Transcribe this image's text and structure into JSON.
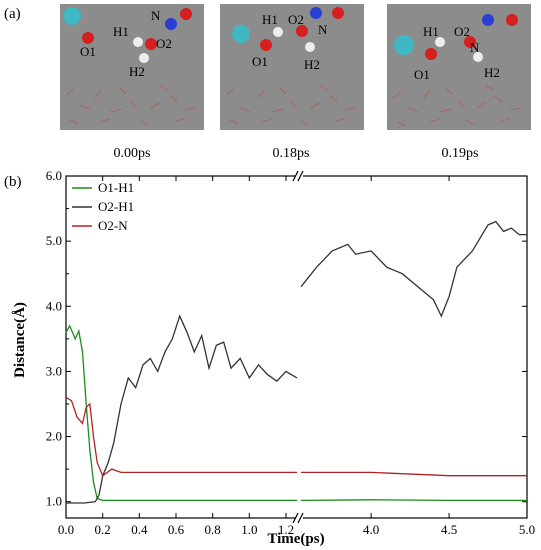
{
  "panel_a": {
    "label": "(a)",
    "snapshots": [
      {
        "time": "0.00ps",
        "atoms": [
          "N",
          "H1",
          "O2",
          "O1",
          "H2"
        ]
      },
      {
        "time": "0.18ps",
        "atoms": [
          "H1",
          "O2",
          "N",
          "O1",
          "H2"
        ]
      },
      {
        "time": "0.19ps",
        "atoms": [
          "H1",
          "O2",
          "N",
          "O1",
          "H2"
        ]
      }
    ]
  },
  "panel_b": {
    "label": "(b)"
  },
  "chart_data": {
    "type": "line",
    "title": "",
    "xlabel": "Time(ps)",
    "ylabel": "Distance(Å)",
    "ylim": [
      0.75,
      6.0
    ],
    "broken_x_axis": true,
    "segments": [
      {
        "xlim": [
          0.0,
          1.26
        ],
        "ticks": [
          "0.0",
          "0.2",
          "0.4",
          "0.6",
          "0.8",
          "1.0",
          "1.2"
        ]
      },
      {
        "xlim": [
          3.55,
          5.0
        ],
        "ticks": [
          "4.0",
          "4.5",
          "5.0"
        ]
      }
    ],
    "yticks": [
      "1.0",
      "2.0",
      "3.0",
      "4.0",
      "5.0",
      "6.0"
    ],
    "legend_position": "top-left",
    "series": [
      {
        "name": "O1-H1",
        "color": "#1a8c1a",
        "points": [
          [
            0.0,
            3.6
          ],
          [
            0.02,
            3.7
          ],
          [
            0.05,
            3.5
          ],
          [
            0.07,
            3.62
          ],
          [
            0.09,
            3.3
          ],
          [
            0.11,
            2.5
          ],
          [
            0.13,
            1.8
          ],
          [
            0.15,
            1.3
          ],
          [
            0.17,
            1.05
          ],
          [
            0.2,
            1.02
          ],
          [
            0.3,
            1.02
          ],
          [
            0.5,
            1.02
          ],
          [
            0.8,
            1.02
          ],
          [
            1.0,
            1.02
          ],
          [
            1.26,
            1.02
          ],
          [
            3.55,
            1.02
          ],
          [
            4.0,
            1.03
          ],
          [
            4.5,
            1.02
          ],
          [
            5.0,
            1.02
          ]
        ]
      },
      {
        "name": "O2-H1",
        "color": "#333333",
        "points": [
          [
            0.0,
            0.98
          ],
          [
            0.1,
            0.98
          ],
          [
            0.16,
            1.0
          ],
          [
            0.18,
            1.1
          ],
          [
            0.2,
            1.4
          ],
          [
            0.23,
            1.6
          ],
          [
            0.26,
            1.9
          ],
          [
            0.3,
            2.5
          ],
          [
            0.34,
            2.9
          ],
          [
            0.38,
            2.75
          ],
          [
            0.42,
            3.1
          ],
          [
            0.46,
            3.2
          ],
          [
            0.5,
            3.0
          ],
          [
            0.54,
            3.3
          ],
          [
            0.58,
            3.5
          ],
          [
            0.62,
            3.85
          ],
          [
            0.66,
            3.6
          ],
          [
            0.7,
            3.3
          ],
          [
            0.74,
            3.55
          ],
          [
            0.78,
            3.05
          ],
          [
            0.82,
            3.4
          ],
          [
            0.86,
            3.45
          ],
          [
            0.9,
            3.05
          ],
          [
            0.95,
            3.2
          ],
          [
            1.0,
            2.9
          ],
          [
            1.05,
            3.1
          ],
          [
            1.1,
            2.95
          ],
          [
            1.15,
            2.85
          ],
          [
            1.2,
            3.0
          ],
          [
            1.26,
            2.9
          ],
          [
            3.55,
            4.3
          ],
          [
            3.65,
            4.6
          ],
          [
            3.75,
            4.85
          ],
          [
            3.85,
            4.95
          ],
          [
            3.9,
            4.8
          ],
          [
            4.0,
            4.85
          ],
          [
            4.1,
            4.6
          ],
          [
            4.2,
            4.5
          ],
          [
            4.3,
            4.3
          ],
          [
            4.4,
            4.1
          ],
          [
            4.45,
            3.85
          ],
          [
            4.5,
            4.15
          ],
          [
            4.55,
            4.6
          ],
          [
            4.65,
            4.85
          ],
          [
            4.75,
            5.25
          ],
          [
            4.8,
            5.3
          ],
          [
            4.85,
            5.15
          ],
          [
            4.9,
            5.2
          ],
          [
            4.95,
            5.1
          ],
          [
            5.0,
            5.1
          ]
        ]
      },
      {
        "name": "O2-N",
        "color": "#b22222",
        "points": [
          [
            0.0,
            2.6
          ],
          [
            0.03,
            2.55
          ],
          [
            0.06,
            2.3
          ],
          [
            0.09,
            2.2
          ],
          [
            0.11,
            2.45
          ],
          [
            0.13,
            2.5
          ],
          [
            0.15,
            2.0
          ],
          [
            0.17,
            1.6
          ],
          [
            0.2,
            1.4
          ],
          [
            0.25,
            1.5
          ],
          [
            0.3,
            1.45
          ],
          [
            0.5,
            1.45
          ],
          [
            0.8,
            1.45
          ],
          [
            1.0,
            1.45
          ],
          [
            1.26,
            1.45
          ],
          [
            3.55,
            1.45
          ],
          [
            4.0,
            1.45
          ],
          [
            4.5,
            1.4
          ],
          [
            5.0,
            1.4
          ]
        ]
      }
    ]
  }
}
